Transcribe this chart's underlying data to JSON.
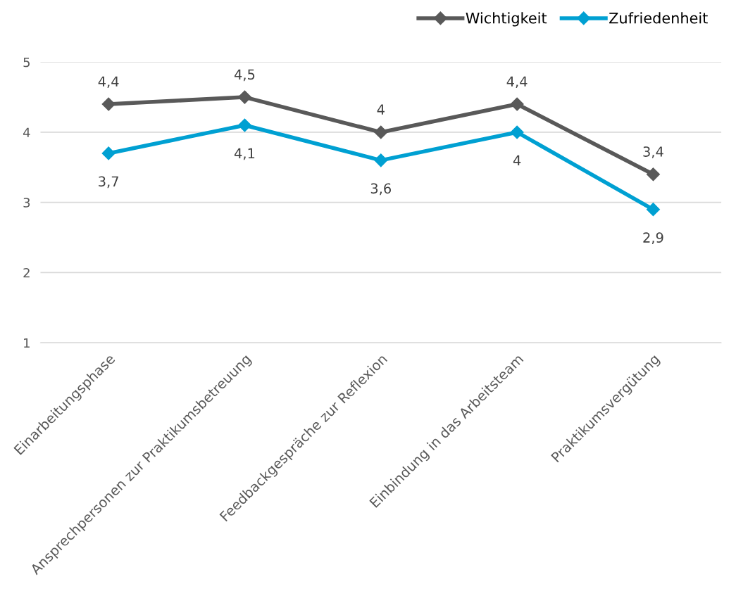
{
  "chart_data": {
    "type": "line",
    "categories": [
      "Einarbeitungsphase",
      "Ansprechpersonen zur Praktikumsbetreuung",
      "Feedbackgespräche zur Reflexion",
      "Einbindung in das Arbeitsteam",
      "Praktikumsvergütung"
    ],
    "series": [
      {
        "name": "Wichtigkeit",
        "color": "#595959",
        "values": [
          4.4,
          4.5,
          4.0,
          4.4,
          3.4
        ],
        "value_labels": [
          "4,4",
          "4,5",
          "4",
          "4,4",
          "3,4"
        ]
      },
      {
        "name": "Zufriedenheit",
        "color": "#00a0d2",
        "values": [
          3.7,
          4.1,
          3.6,
          4.0,
          2.9
        ],
        "value_labels": [
          "3,7",
          "4,1",
          "3,6",
          "4",
          "2,9"
        ]
      }
    ],
    "ylim": [
      1,
      5
    ],
    "yticks": [
      1,
      2,
      3,
      4,
      5
    ],
    "grid": "y",
    "legend": "top right",
    "marker": "diamond",
    "line_style": "solid"
  }
}
